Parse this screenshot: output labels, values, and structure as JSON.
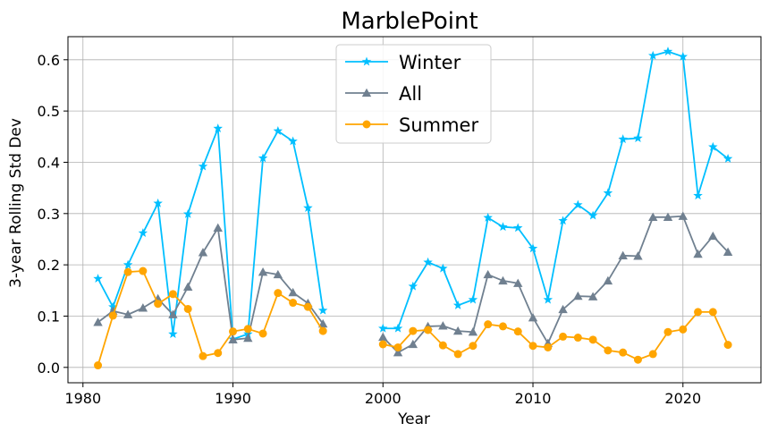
{
  "chart_data": {
    "type": "line",
    "title": "MarblePoint",
    "xlabel": "Year",
    "ylabel": "3-year Rolling Std Dev",
    "xlim": [
      1979,
      2025.2
    ],
    "ylim": [
      -0.03,
      0.645
    ],
    "xticks": [
      1980,
      1990,
      2000,
      2010,
      2020
    ],
    "yticks": [
      0.0,
      0.1,
      0.2,
      0.3,
      0.4,
      0.5,
      0.6
    ],
    "ytick_labels": [
      "0.0",
      "0.1",
      "0.2",
      "0.3",
      "0.4",
      "0.5",
      "0.6"
    ],
    "grid": true,
    "legend_position": "top-center",
    "series": [
      {
        "name": "Winter",
        "color": "#00bfff",
        "marker": "star",
        "x": [
          1981,
          1982,
          1983,
          1984,
          1985,
          1986,
          1987,
          1988,
          1989,
          1990,
          1991,
          1992,
          1993,
          1994,
          1995,
          1996,
          2000,
          2001,
          2002,
          2003,
          2004,
          2005,
          2006,
          2007,
          2008,
          2009,
          2010,
          2011,
          2012,
          2013,
          2014,
          2015,
          2016,
          2017,
          2018,
          2019,
          2020,
          2021,
          2022,
          2023
        ],
        "y": [
          0.173,
          0.118,
          0.2,
          0.262,
          0.32,
          0.065,
          0.299,
          0.392,
          0.466,
          0.055,
          0.065,
          0.408,
          0.461,
          0.441,
          0.311,
          0.111,
          0.076,
          0.076,
          0.158,
          0.205,
          0.193,
          0.121,
          0.132,
          0.292,
          0.274,
          0.272,
          0.232,
          0.132,
          0.286,
          0.317,
          0.296,
          0.34,
          0.445,
          0.447,
          0.608,
          0.616,
          0.606,
          0.335,
          0.43,
          0.407
        ]
      },
      {
        "name": "All",
        "color": "#708090",
        "marker": "triangle",
        "x": [
          1981,
          1982,
          1983,
          1984,
          1985,
          1986,
          1987,
          1988,
          1989,
          1990,
          1991,
          1992,
          1993,
          1994,
          1995,
          1996,
          2000,
          2001,
          2002,
          2003,
          2004,
          2005,
          2006,
          2007,
          2008,
          2009,
          2010,
          2011,
          2012,
          2013,
          2014,
          2015,
          2016,
          2017,
          2018,
          2019,
          2020,
          2021,
          2022,
          2023
        ],
        "y": [
          0.088,
          0.11,
          0.103,
          0.116,
          0.134,
          0.103,
          0.157,
          0.224,
          0.272,
          0.054,
          0.057,
          0.186,
          0.181,
          0.146,
          0.125,
          0.085,
          0.059,
          0.029,
          0.045,
          0.08,
          0.081,
          0.071,
          0.069,
          0.181,
          0.169,
          0.164,
          0.097,
          0.047,
          0.113,
          0.139,
          0.138,
          0.169,
          0.218,
          0.217,
          0.293,
          0.293,
          0.295,
          0.221,
          0.256,
          0.225
        ]
      },
      {
        "name": "Summer",
        "color": "#ffa500",
        "marker": "circle",
        "x": [
          1981,
          1982,
          1983,
          1984,
          1985,
          1986,
          1987,
          1988,
          1989,
          1990,
          1991,
          1992,
          1993,
          1994,
          1995,
          1996,
          2000,
          2001,
          2002,
          2003,
          2004,
          2005,
          2006,
          2007,
          2008,
          2009,
          2010,
          2011,
          2012,
          2013,
          2014,
          2015,
          2016,
          2017,
          2018,
          2019,
          2020,
          2021,
          2022,
          2023
        ],
        "y": [
          0.004,
          0.101,
          0.186,
          0.188,
          0.124,
          0.143,
          0.114,
          0.022,
          0.028,
          0.07,
          0.075,
          0.066,
          0.145,
          0.126,
          0.118,
          0.071,
          0.045,
          0.039,
          0.071,
          0.073,
          0.043,
          0.026,
          0.042,
          0.084,
          0.08,
          0.07,
          0.042,
          0.039,
          0.06,
          0.058,
          0.054,
          0.033,
          0.029,
          0.015,
          0.026,
          0.069,
          0.074,
          0.108,
          0.108,
          0.044
        ]
      }
    ]
  }
}
